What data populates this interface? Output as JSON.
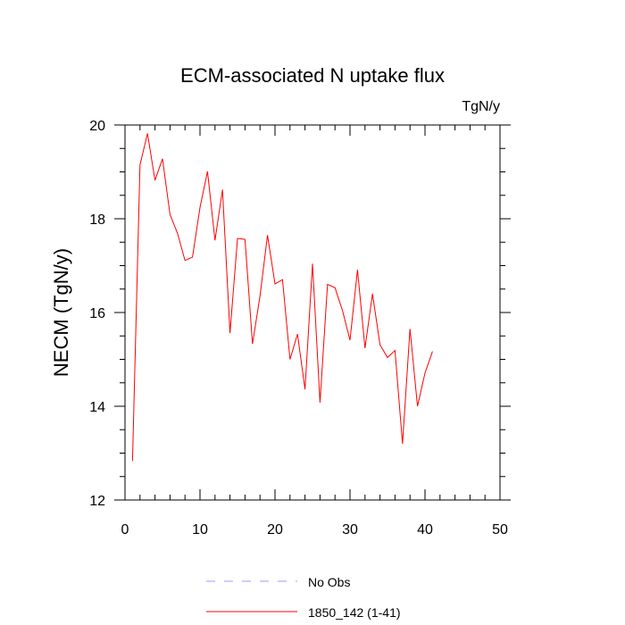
{
  "chart_data": {
    "type": "line",
    "title": "ECM-associated N uptake flux",
    "units_label": "TgN/y",
    "xlabel": "",
    "ylabel": "NECM  (TgN/y)",
    "xlim": [
      0,
      50
    ],
    "ylim": [
      12,
      20
    ],
    "x_ticks": [
      0,
      10,
      20,
      30,
      40,
      50
    ],
    "y_ticks": [
      12,
      14,
      16,
      18,
      20
    ],
    "x_tick_labels": [
      "0",
      "10",
      "20",
      "30",
      "40",
      "50"
    ],
    "y_tick_labels": [
      "12",
      "14",
      "16",
      "18",
      "20"
    ],
    "series": [
      {
        "name": "1850_142 (1-41)",
        "color": "#ff0000",
        "x": [
          1,
          2,
          3,
          4,
          5,
          6,
          7,
          8,
          9,
          10,
          11,
          12,
          13,
          14,
          15,
          16,
          17,
          18,
          19,
          20,
          21,
          22,
          23,
          24,
          25,
          26,
          27,
          28,
          29,
          30,
          31,
          32,
          33,
          34,
          35,
          36,
          37,
          38,
          39,
          40,
          41
        ],
        "values": [
          12.83,
          19.15,
          19.82,
          18.82,
          19.28,
          18.09,
          17.69,
          17.11,
          17.18,
          18.24,
          19.01,
          17.54,
          18.62,
          15.56,
          17.58,
          17.56,
          15.33,
          16.35,
          17.65,
          16.61,
          16.7,
          15.0,
          15.54,
          14.36,
          17.04,
          14.08,
          16.6,
          16.53,
          16.04,
          15.41,
          16.91,
          15.24,
          16.4,
          15.31,
          15.04,
          15.19,
          13.2,
          15.65,
          14.0,
          14.71,
          15.17
        ]
      }
    ],
    "legend": [
      {
        "label": "No Obs",
        "color": "#9999ff",
        "dash": "dashed"
      },
      {
        "label": "1850_142 (1-41)",
        "color": "#ff0000",
        "dash": "solid"
      }
    ],
    "legend_position": "bottom-center",
    "grid": false
  }
}
